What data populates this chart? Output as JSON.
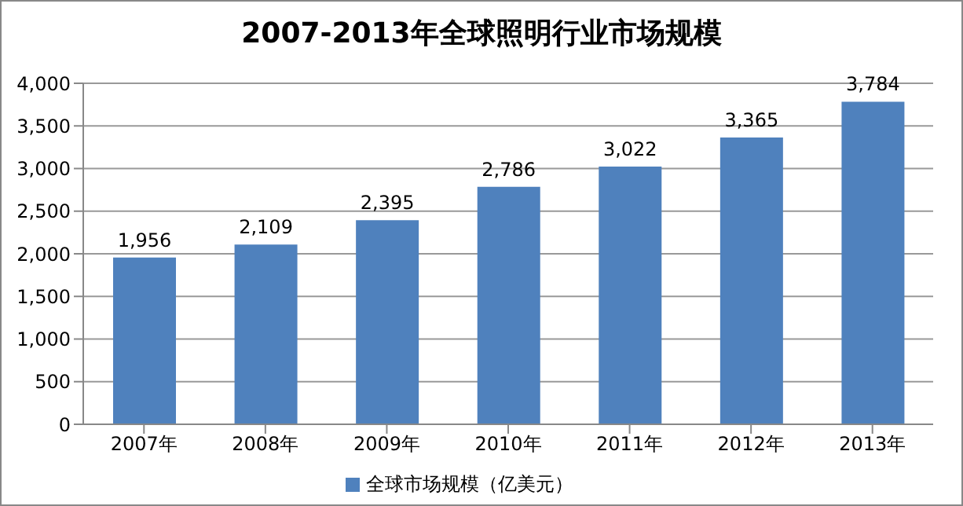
{
  "chart_data": {
    "type": "bar",
    "title": "2007-2013年全球照明行业市场规模",
    "categories": [
      "2007年",
      "2008年",
      "2009年",
      "2010年",
      "2011年",
      "2012年",
      "2013年"
    ],
    "series": [
      {
        "name": "全球市场规模（亿美元）",
        "color": "#4f81bd",
        "values": [
          1956,
          2109,
          2395,
          2786,
          3022,
          3365,
          3784
        ],
        "value_labels": [
          "1,956",
          "2,109",
          "2,395",
          "2,786",
          "3,022",
          "3,365",
          "3,784"
        ]
      }
    ],
    "ylim": [
      0,
      4000
    ],
    "yticks": [
      {
        "value": 0,
        "label": "0"
      },
      {
        "value": 500,
        "label": "500"
      },
      {
        "value": 1000,
        "label": "1,000"
      },
      {
        "value": 1500,
        "label": "1,500"
      },
      {
        "value": 2000,
        "label": "2,000"
      },
      {
        "value": 2500,
        "label": "2,500"
      },
      {
        "value": 3000,
        "label": "3,000"
      },
      {
        "value": 3500,
        "label": "3,500"
      },
      {
        "value": 4000,
        "label": "4,000"
      }
    ],
    "grid": "y",
    "legend": "bottom"
  }
}
